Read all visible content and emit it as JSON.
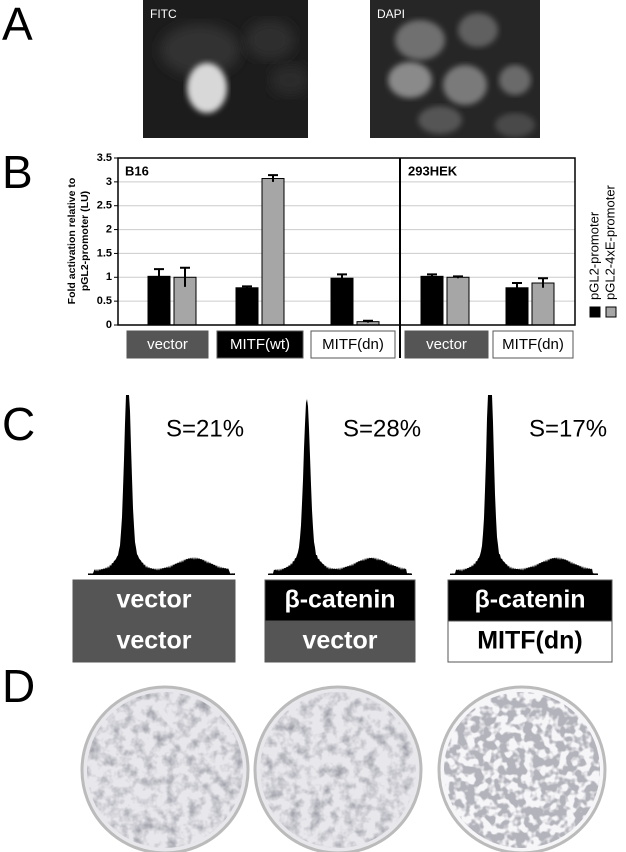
{
  "panel_labels": [
    "A",
    "B",
    "C",
    "D"
  ],
  "panel_a": {
    "images": [
      "FITC",
      "DAPI"
    ]
  },
  "chart_data": [
    {
      "type": "bar",
      "title": "B16",
      "ylabel": [
        "Fold activation relative to",
        "pGL2-promoter (LU)"
      ],
      "categories": [
        "vector",
        "MITF(wt)",
        "MITF(dn)"
      ],
      "series": [
        {
          "name": "pGL2-promoter",
          "color": "#000000",
          "values": [
            1.02,
            0.78,
            0.98
          ],
          "errors": [
            0.15,
            0.03,
            0.08
          ]
        },
        {
          "name": "pGL2-4xE-promoter",
          "color": "#a6a6a6",
          "values": [
            1.0,
            3.07,
            0.07
          ],
          "errors": [
            0.2,
            0.07,
            0.02
          ]
        }
      ],
      "ylim": [
        0,
        3.5
      ],
      "yticks": [
        0,
        0.5,
        1,
        1.5,
        2,
        2.5,
        3,
        3.5
      ],
      "grid": true
    },
    {
      "type": "bar",
      "title": "293HEK",
      "categories": [
        "vector",
        "MITF(dn)"
      ],
      "series": [
        {
          "color": "#000000",
          "values": [
            1.02,
            0.78
          ],
          "errors": [
            0.04,
            0.1
          ]
        },
        {
          "color": "#a6a6a6",
          "values": [
            1.0,
            0.88
          ],
          "errors": [
            0.02,
            0.1
          ]
        }
      ],
      "ylim": [
        0,
        3.5
      ],
      "grid": true
    }
  ],
  "panel_c": {
    "histograms": [
      {
        "s": "S=21%",
        "labels": [
          "vector",
          "vector"
        ]
      },
      {
        "s": "S=28%",
        "labels": [
          "β-catenin",
          "vector"
        ]
      },
      {
        "s": "S=17%",
        "labels": [
          "β-catenin",
          "MITF(dn)"
        ]
      }
    ]
  }
}
